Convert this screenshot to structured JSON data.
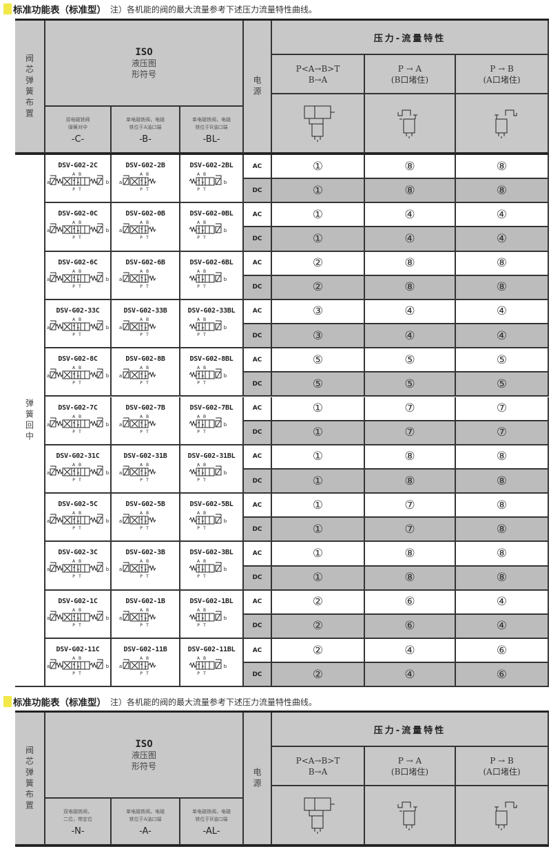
{
  "section_title": {
    "bold": "标准功能表（标准型）",
    "note": "注）各机能的阀的最大流量参考下述压力流量特性曲线。"
  },
  "header": {
    "spool_spring": "阀芯弹簧布置",
    "iso_title": "ISO",
    "iso_sub1": "液压图",
    "iso_sub2": "形符号",
    "power": "电源",
    "pq_title": "压力-流量特性",
    "flow1": "P⇄A→B⇉T / B→A",
    "flow1_top": "P<A→B>T",
    "flow1_bottom": "B→A",
    "flow2": "P → A",
    "flow2_note": "(B口堵住)",
    "flow3": "P → B",
    "flow3_note": "(A口堵住)"
  },
  "table1": {
    "subcols": [
      {
        "desc1": "双电磁铁阀",
        "desc2": "弹簧对中",
        "code": "-C-"
      },
      {
        "desc1": "单电磁铁阀，电磁",
        "desc2": "铁位于A油口端",
        "code": "-B-"
      },
      {
        "desc1": "单电磁铁阀，电磁",
        "desc2": "铁位于B油口端",
        "code": "-BL-"
      }
    ],
    "group_label": "弹簧回中",
    "rows": [
      {
        "models": [
          "DSV-G02-2C",
          "DSV-G02-2B",
          "DSV-G02-2BL"
        ],
        "ac": [
          "①",
          "⑧",
          "⑧"
        ],
        "dc": [
          "①",
          "⑧",
          "⑧"
        ]
      },
      {
        "models": [
          "DSV-G02-0C",
          "DSV-G02-0B",
          "DSV-G02-0BL"
        ],
        "ac": [
          "①",
          "④",
          "④"
        ],
        "dc": [
          "①",
          "④",
          "④"
        ]
      },
      {
        "models": [
          "DSV-G02-6C",
          "DSV-G02-6B",
          "DSV-G02-6BL"
        ],
        "ac": [
          "②",
          "⑧",
          "⑧"
        ],
        "dc": [
          "②",
          "⑧",
          "⑧"
        ]
      },
      {
        "models": [
          "DSV-G02-33C",
          "DSV-G02-33B",
          "DSV-G02-33BL"
        ],
        "ac": [
          "③",
          "④",
          "④"
        ],
        "dc": [
          "③",
          "④",
          "④"
        ]
      },
      {
        "models": [
          "DSV-G02-8C",
          "DSV-G02-8B",
          "DSV-G02-8BL"
        ],
        "ac": [
          "⑤",
          "⑤",
          "⑤"
        ],
        "dc": [
          "⑤",
          "⑤",
          "⑤"
        ]
      },
      {
        "models": [
          "DSV-G02-7C",
          "DSV-G02-7B",
          "DSV-G02-7BL"
        ],
        "ac": [
          "①",
          "⑦",
          "⑦"
        ],
        "dc": [
          "①",
          "⑦",
          "⑦"
        ]
      },
      {
        "models": [
          "DSV-G02-31C",
          "DSV-G02-31B",
          "DSV-G02-31BL"
        ],
        "ac": [
          "①",
          "⑧",
          "⑧"
        ],
        "dc": [
          "①",
          "⑧",
          "⑧"
        ]
      },
      {
        "models": [
          "DSV-G02-5C",
          "DSV-G02-5B",
          "DSV-G02-5BL"
        ],
        "ac": [
          "①",
          "⑦",
          "⑧"
        ],
        "dc": [
          "①",
          "⑦",
          "⑧"
        ]
      },
      {
        "models": [
          "DSV-G02-3C",
          "DSV-G02-3B",
          "DSV-G02-3BL"
        ],
        "ac": [
          "①",
          "⑧",
          "⑧"
        ],
        "dc": [
          "①",
          "⑧",
          "⑧"
        ]
      },
      {
        "models": [
          "DSV-G02-1C",
          "DSV-G02-1B",
          "DSV-G02-1BL"
        ],
        "ac": [
          "②",
          "⑥",
          "④"
        ],
        "dc": [
          "②",
          "⑥",
          "④"
        ]
      },
      {
        "models": [
          "DSV-G02-11C",
          "DSV-G02-11B",
          "DSV-G02-11BL"
        ],
        "ac": [
          "②",
          "④",
          "⑥"
        ],
        "dc": [
          "②",
          "④",
          "⑥"
        ]
      }
    ]
  },
  "table2": {
    "subcols": [
      {
        "desc1": "双电磁铁阀，",
        "desc2": "二位，带定位",
        "code": "-N-"
      },
      {
        "desc1": "单电磁铁阀，电磁",
        "desc2": "铁位于A油口端",
        "code": "-A-"
      },
      {
        "desc1": "单电磁铁阀，电磁",
        "desc2": "铁位于B油口端",
        "code": "-AL-"
      }
    ]
  },
  "power_labels": {
    "ac": "AC",
    "dc": "DC"
  },
  "symbol_ports": {
    "a": "A",
    "b": "B",
    "p": "P",
    "t": "T",
    "sol_a": "a",
    "sol_b": "b"
  },
  "colors": {
    "header_bg": "#c8c8c8",
    "dc_row_bg": "#bcbcbc",
    "title_mark": "#f2e84a"
  }
}
